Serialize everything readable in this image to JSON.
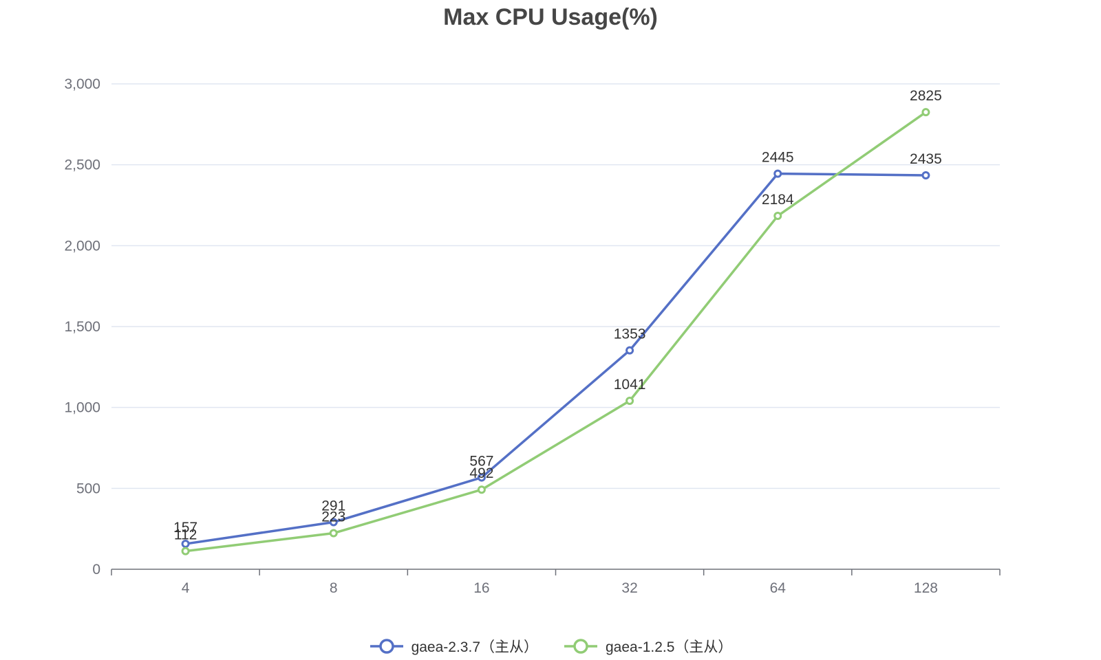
{
  "chart_data": {
    "type": "line",
    "title": "Max CPU Usage(%)",
    "categories": [
      "4",
      "8",
      "16",
      "32",
      "64",
      "128"
    ],
    "ylim": [
      0,
      3000
    ],
    "yticks": [
      0,
      500,
      1000,
      1500,
      2000,
      2500,
      3000
    ],
    "ytick_labels": [
      "0",
      "500",
      "1,000",
      "1,500",
      "2,000",
      "2,500",
      "3,000"
    ],
    "grid": true,
    "legend_position": "bottom-center",
    "series": [
      {
        "name": "gaea-2.3.7（主从）",
        "color": "#5470c6",
        "values": [
          157,
          291,
          567,
          1353,
          2445,
          2435
        ]
      },
      {
        "name": "gaea-1.2.5（主从）",
        "color": "#91cc75",
        "values": [
          112,
          223,
          492,
          1041,
          2184,
          2825
        ]
      }
    ]
  }
}
